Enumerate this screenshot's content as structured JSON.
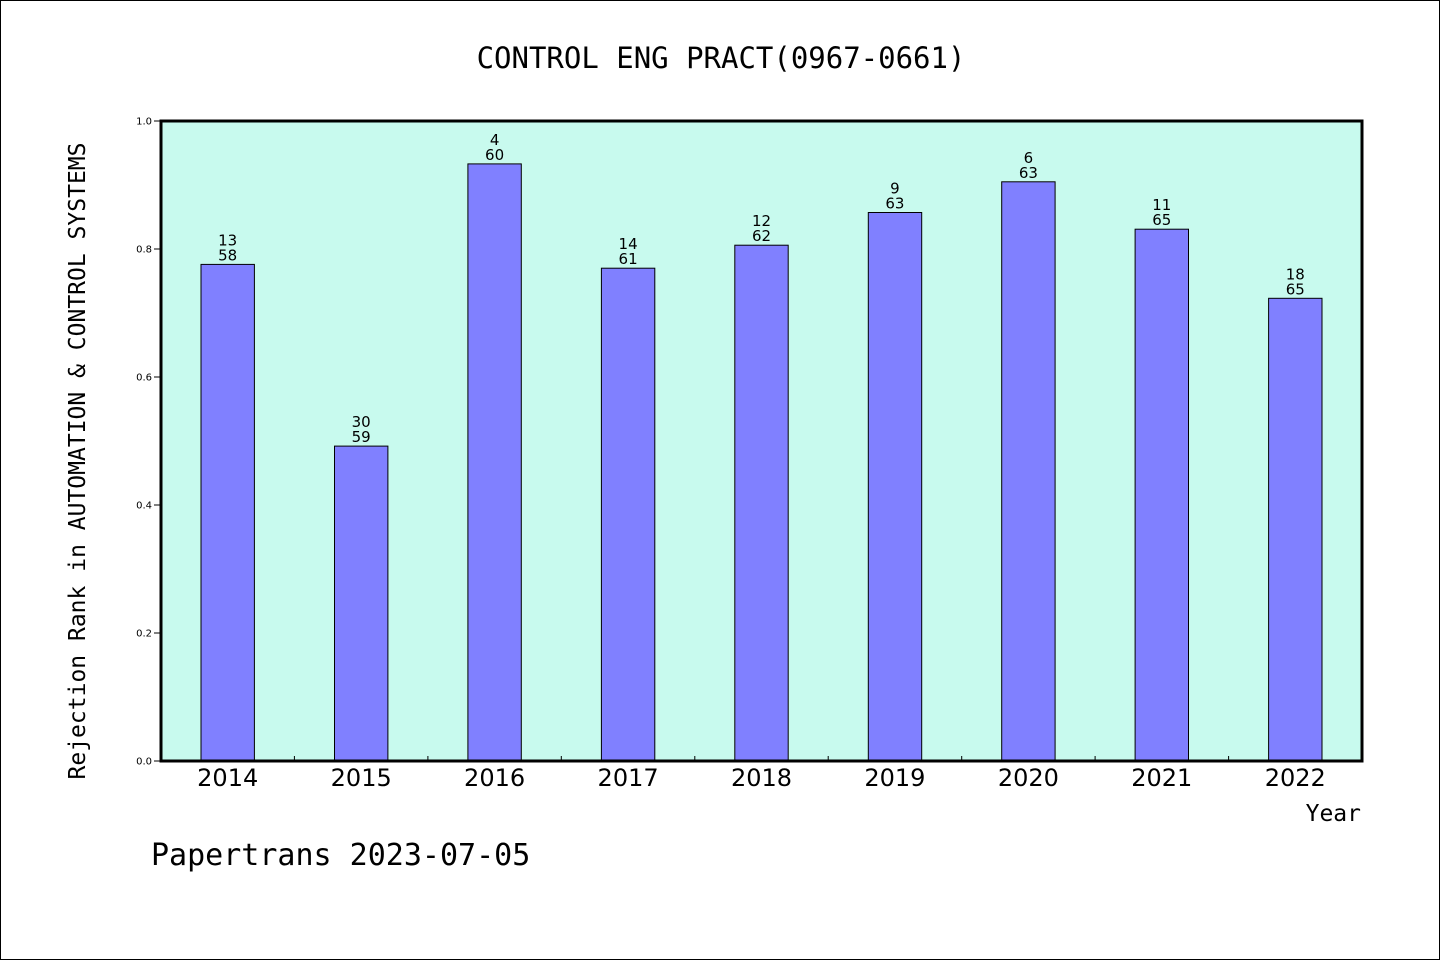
{
  "chart_data": {
    "type": "bar",
    "title": "CONTROL ENG PRACT(0967-0661)",
    "xlabel": "Year",
    "ylabel": "Rejection Rank in AUTOMATION & CONTROL SYSTEMS",
    "ylim": [
      0,
      1.0
    ],
    "yticks": [
      "0.0",
      "0.2",
      "0.4",
      "0.6",
      "0.8",
      "1.0"
    ],
    "grid": false,
    "categories": [
      "2014",
      "2015",
      "2016",
      "2017",
      "2018",
      "2019",
      "2020",
      "2021",
      "2022"
    ],
    "values": [
      0.776,
      0.492,
      0.933,
      0.77,
      0.806,
      0.857,
      0.905,
      0.831,
      0.723
    ],
    "rank_labels": [
      "13",
      "30",
      "4",
      "14",
      "12",
      "9",
      "6",
      "11",
      "18"
    ],
    "total_labels": [
      "58",
      "59",
      "60",
      "61",
      "62",
      "63",
      "63",
      "65",
      "65"
    ],
    "colors": {
      "plot_background": "#c8faee",
      "bar_fill": "#8080ff",
      "bar_stroke": "#000000",
      "axis": "#000000"
    }
  },
  "footer": {
    "credit": "Papertrans 2023-07-05"
  }
}
